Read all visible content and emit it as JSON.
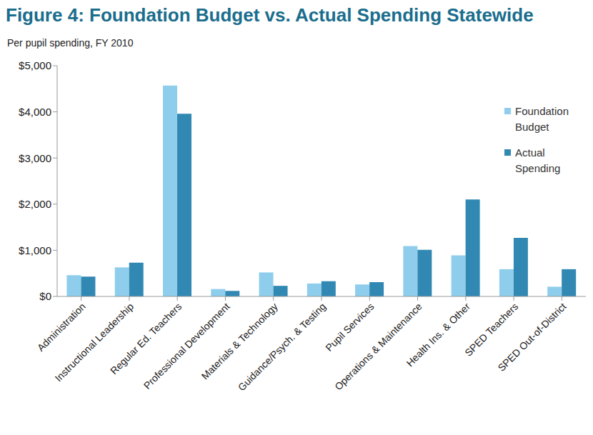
{
  "chart_data": {
    "type": "bar",
    "title": "Figure 4: Foundation Budget vs. Actual Spending Statewide",
    "subtitle": "Per pupil spending, FY 2010",
    "categories": [
      "Administration",
      "Instructional Leadership",
      "Regular Ed. Teachers",
      "Professional Development",
      "Materials & Technology",
      "Guidance/Psych. & Testing",
      "Pupil Services",
      "Operations & Maintenance",
      "Health Ins. & Other",
      "SPED Teachers",
      "SPED Out-of-District"
    ],
    "series": [
      {
        "name": "Foundation Budget",
        "color": "#8ecdec",
        "values": [
          460,
          630,
          4570,
          160,
          520,
          280,
          260,
          1090,
          890,
          590,
          210
        ]
      },
      {
        "name": "Actual Spending",
        "color": "#3189b3",
        "values": [
          430,
          730,
          3960,
          120,
          230,
          330,
          310,
          1010,
          2100,
          1270,
          590
        ]
      }
    ],
    "ylim": [
      0,
      5000
    ],
    "yticks": [
      {
        "value": 0,
        "label": "$0"
      },
      {
        "value": 1000,
        "label": "$1,000"
      },
      {
        "value": 2000,
        "label": "$2,000"
      },
      {
        "value": 3000,
        "label": "$3,000"
      },
      {
        "value": 4000,
        "label": "$4,000"
      },
      {
        "value": 5000,
        "label": "$5,000"
      }
    ],
    "grid": false,
    "legend": "top right"
  }
}
